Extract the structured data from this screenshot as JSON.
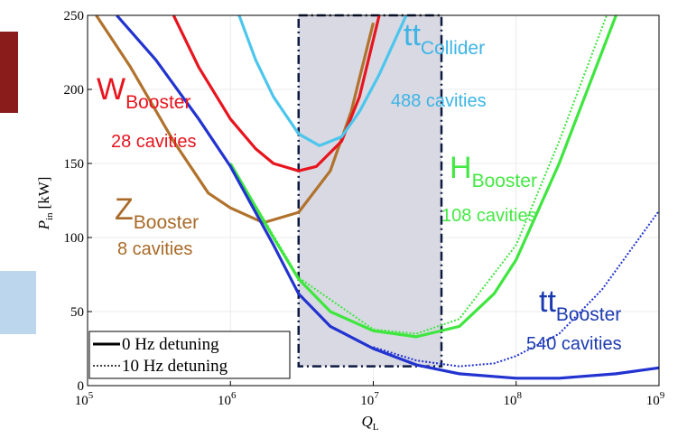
{
  "chart_data": {
    "type": "line",
    "xlabel": {
      "text": "Q",
      "sub": "L"
    },
    "ylabel": {
      "text": "P",
      "sub": "in",
      "unit": "[kW]"
    },
    "xlog": true,
    "xlim": [
      100000,
      1000000000
    ],
    "ylim": [
      0,
      250
    ],
    "xticks": [
      {
        "value": 100000,
        "label": "10",
        "exponent": "5"
      },
      {
        "value": 1000000,
        "label": "10",
        "exponent": "6"
      },
      {
        "value": 10000000,
        "label": "10",
        "exponent": "7"
      },
      {
        "value": 100000000,
        "label": "10",
        "exponent": "8"
      },
      {
        "value": 1000000000,
        "label": "10",
        "exponent": "9"
      }
    ],
    "yticks": [
      0,
      50,
      100,
      150,
      200,
      250
    ],
    "grid": true,
    "region": {
      "x": [
        3000000,
        30000000
      ],
      "y": [
        13,
        250
      ],
      "color": "#d9d9e3",
      "edge": "#0d1a40"
    },
    "series": [
      {
        "color": "#b0722c",
        "dash": false,
        "x": [
          115000,
          200000,
          400000,
          700000,
          1000000,
          1700000,
          3000000,
          5000000,
          7000000,
          10000000
        ],
        "values": [
          250,
          215,
          165,
          130,
          120,
          110,
          117,
          145,
          185,
          245
        ]
      },
      {
        "color": "#e8141e",
        "dash": false,
        "x": [
          400000,
          600000,
          1000000,
          1500000,
          2000000,
          3000000,
          4000000,
          6000000,
          8000000,
          11000000
        ],
        "values": [
          250,
          215,
          180,
          160,
          150,
          145,
          148,
          165,
          195,
          250
        ]
      },
      {
        "color": "#4cc6ec",
        "dash": false,
        "x": [
          1150000,
          1500000,
          2000000,
          3000000,
          4200000,
          6000000,
          8000000,
          11000000,
          17000000
        ],
        "values": [
          250,
          220,
          195,
          170,
          162,
          168,
          185,
          210,
          250
        ]
      },
      {
        "color": "#3ee63e",
        "dash": false,
        "x": [
          1000000,
          2000000,
          3000000,
          5000000,
          10000000,
          20000000,
          40000000,
          70000000,
          100000000,
          200000000,
          500000000
        ],
        "values": [
          150,
          100,
          72,
          50,
          37,
          33,
          40,
          62,
          85,
          150,
          250
        ]
      },
      {
        "color": "#3ee63e",
        "dash": true,
        "x": [
          1000000,
          3000000,
          10000000,
          20000000,
          40000000,
          100000000,
          200000000,
          430000000
        ],
        "values": [
          150,
          73,
          38,
          35,
          45,
          95,
          165,
          250
        ]
      },
      {
        "color": "#2233d0",
        "dash": false,
        "x": [
          160000,
          300000,
          600000,
          1000000,
          2000000,
          3000000,
          5000000,
          10000000,
          20000000,
          40000000,
          100000000,
          200000000,
          500000000,
          1000000000
        ],
        "values": [
          250,
          220,
          180,
          148,
          95,
          62,
          40,
          25,
          14,
          8,
          5,
          5,
          8,
          12
        ]
      },
      {
        "color": "#2233d0",
        "dash": true,
        "x": [
          10000000,
          20000000,
          40000000,
          70000000,
          100000000,
          200000000,
          400000000,
          1000000000
        ],
        "values": [
          26,
          17,
          13,
          15,
          20,
          35,
          65,
          118
        ]
      }
    ],
    "annotations": [
      {
        "text": "W",
        "sub": "Booster",
        "note": "28 cavities",
        "color": "#e8141e"
      },
      {
        "text": "Z",
        "sub": "Booster",
        "note": "8 cavities",
        "color": "#a86a28"
      },
      {
        "text": "tt",
        "sub": "Collider",
        "note": "488 cavities",
        "color": "#3cb4e6"
      },
      {
        "text": "H",
        "sub": "Booster",
        "note": "108 cavities",
        "color": "#44e844"
      },
      {
        "text": "tt",
        "sub": "Booster",
        "note": "540 cavities",
        "color": "#1b3ab0"
      }
    ],
    "legend": [
      {
        "label": "0 Hz detuning",
        "dash": false
      },
      {
        "label": "10 Hz detuning",
        "dash": true
      }
    ]
  }
}
